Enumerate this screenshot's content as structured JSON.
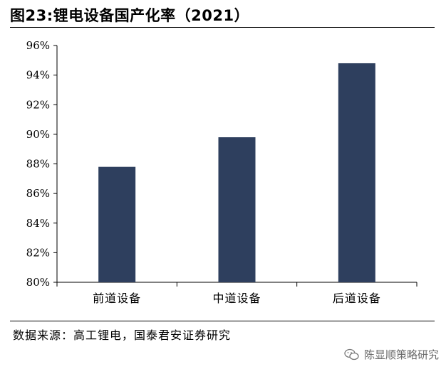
{
  "title": "图23:锂电设备国产化率（2021）",
  "source": "数据来源：高工锂电，国泰君安证券研究",
  "watermark": {
    "text": "陈显顺策略研究",
    "icon": "wechat-icon"
  },
  "colors": {
    "bar": "#2e3f5e",
    "axis": "#000000"
  },
  "chart_data": {
    "type": "bar",
    "categories": [
      "前道设备",
      "中道设备",
      "后道设备"
    ],
    "values": [
      87.8,
      89.8,
      94.8
    ],
    "value_format": "percent",
    "ylim": [
      80,
      96
    ],
    "yticks": [
      80,
      82,
      84,
      86,
      88,
      90,
      92,
      94,
      96
    ],
    "ytick_labels": [
      "80%",
      "82%",
      "84%",
      "86%",
      "88%",
      "90%",
      "92%",
      "94%",
      "96%"
    ],
    "title": "",
    "xlabel": "",
    "ylabel": "",
    "grid": false,
    "legend": "none"
  }
}
